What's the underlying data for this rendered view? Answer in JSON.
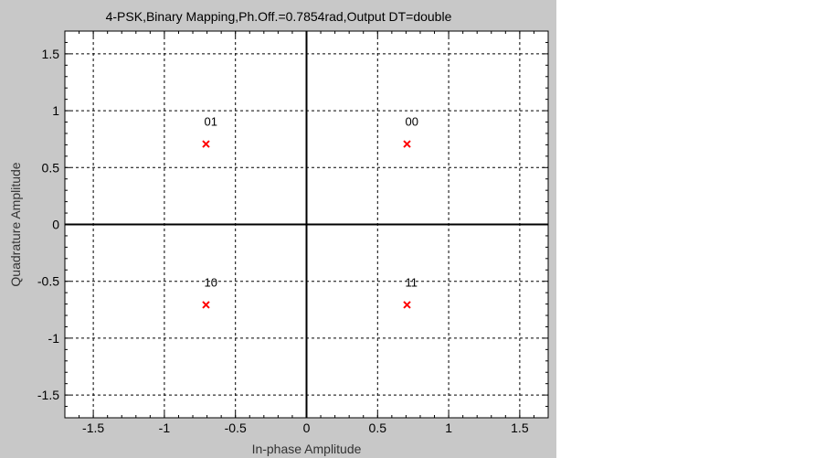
{
  "chart_data": {
    "type": "scatter",
    "title": "4-PSK,Binary Mapping,Ph.Off.=0.7854rad,Output DT=double",
    "xlabel": "In-phase Amplitude",
    "ylabel": "Quadrature Amplitude",
    "xlim": [
      -1.7,
      1.7
    ],
    "ylim": [
      -1.7,
      1.7
    ],
    "xticks": [
      -1.5,
      -1,
      -0.5,
      0,
      0.5,
      1,
      1.5
    ],
    "yticks": [
      -1.5,
      -1,
      -0.5,
      0,
      0.5,
      1,
      1.5
    ],
    "xtick_labels": [
      "-1.5",
      "-1",
      "-0.5",
      "0",
      "0.5",
      "1",
      "1.5"
    ],
    "ytick_labels": [
      "-1.5",
      "-1",
      "-0.5",
      "0",
      "0.5",
      "1",
      "1.5"
    ],
    "minor_xticks": [
      -1.6,
      -1.4,
      -1.3,
      -1.2,
      -1.1,
      -0.9,
      -0.8,
      -0.7,
      -0.6,
      -0.4,
      -0.3,
      -0.2,
      -0.1,
      0.1,
      0.2,
      0.3,
      0.4,
      0.6,
      0.7,
      0.8,
      0.9,
      1.1,
      1.2,
      1.3,
      1.4,
      1.6
    ],
    "minor_yticks": [
      -1.6,
      -1.4,
      -1.3,
      -1.2,
      -1.1,
      -0.9,
      -0.8,
      -0.7,
      -0.6,
      -0.4,
      -0.3,
      -0.2,
      -0.1,
      0.1,
      0.2,
      0.3,
      0.4,
      0.6,
      0.7,
      0.8,
      0.9,
      1.1,
      1.2,
      1.3,
      1.4,
      1.6
    ],
    "grid": true,
    "marker": "x",
    "marker_color": "#ff0000",
    "points": [
      {
        "x": 0.7071,
        "y": 0.7071,
        "label": "00"
      },
      {
        "x": -0.7071,
        "y": 0.7071,
        "label": "01"
      },
      {
        "x": 0.7071,
        "y": -0.7071,
        "label": "11"
      },
      {
        "x": -0.7071,
        "y": -0.7071,
        "label": "10"
      }
    ]
  }
}
